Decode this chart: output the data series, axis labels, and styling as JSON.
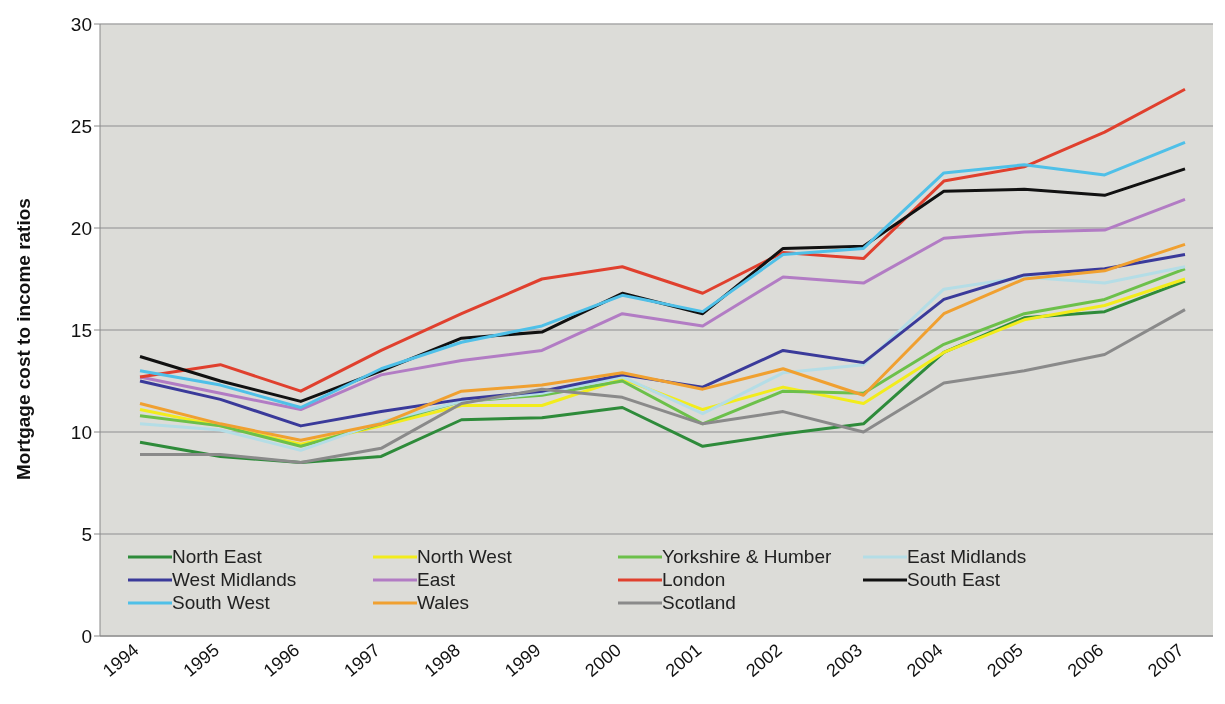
{
  "chart_data": {
    "type": "line",
    "ylabel": "Mortgage cost to income ratios",
    "categories": [
      "1994",
      "1995",
      "1996",
      "1997",
      "1998",
      "1999",
      "2000",
      "2001",
      "2002",
      "2003",
      "2004",
      "2005",
      "2006",
      "2007"
    ],
    "ylim": [
      0,
      30
    ],
    "yticks": [
      0,
      5,
      10,
      15,
      20,
      25,
      30
    ],
    "grid": "y",
    "legend": "bottom left",
    "marker": "none",
    "series": [
      {
        "name": "North East",
        "color": "#2e8b3a",
        "values": [
          9.5,
          8.8,
          8.5,
          8.8,
          10.6,
          10.7,
          11.2,
          9.3,
          9.9,
          10.4,
          13.9,
          15.6,
          15.9,
          17.4
        ]
      },
      {
        "name": "North West",
        "color": "#f2ec1c",
        "values": [
          11.1,
          10.3,
          9.4,
          10.3,
          11.3,
          11.3,
          12.6,
          11.1,
          12.2,
          11.4,
          13.9,
          15.5,
          16.2,
          17.5
        ]
      },
      {
        "name": "Yorkshire & Humber",
        "color": "#6cc04a",
        "values": [
          10.8,
          10.3,
          9.3,
          10.4,
          11.5,
          11.8,
          12.5,
          10.4,
          12.0,
          11.9,
          14.3,
          15.8,
          16.5,
          18.0
        ]
      },
      {
        "name": "East Midlands",
        "color": "#b4dde6",
        "values": [
          10.4,
          10.1,
          9.1,
          10.5,
          11.5,
          11.9,
          12.7,
          10.9,
          12.9,
          13.3,
          17.0,
          17.6,
          17.3,
          18.1
        ]
      },
      {
        "name": "West Midlands",
        "color": "#3a3a9a",
        "values": [
          12.5,
          11.6,
          10.3,
          11.0,
          11.6,
          12.0,
          12.8,
          12.2,
          14.0,
          13.4,
          16.5,
          17.7,
          18.0,
          18.7
        ]
      },
      {
        "name": "East",
        "color": "#b27cc4",
        "values": [
          12.7,
          11.9,
          11.1,
          12.8,
          13.5,
          14.0,
          15.8,
          15.2,
          17.6,
          17.3,
          19.5,
          19.8,
          19.9,
          21.4
        ]
      },
      {
        "name": "London",
        "color": "#e0402e",
        "values": [
          12.7,
          13.3,
          12.0,
          14.0,
          15.8,
          17.5,
          18.1,
          16.8,
          18.8,
          18.5,
          22.3,
          23.0,
          24.7,
          26.8
        ]
      },
      {
        "name": "South East",
        "color": "#111111",
        "values": [
          13.7,
          12.5,
          11.5,
          13.0,
          14.6,
          14.9,
          16.8,
          15.8,
          19.0,
          19.1,
          21.8,
          21.9,
          21.6,
          22.9
        ]
      },
      {
        "name": "South West",
        "color": "#4fc0e8",
        "values": [
          13.0,
          12.3,
          11.2,
          13.1,
          14.4,
          15.2,
          16.7,
          15.9,
          18.7,
          19.0,
          22.7,
          23.1,
          22.6,
          24.2
        ]
      },
      {
        "name": "Wales",
        "color": "#f0a030",
        "values": [
          11.4,
          10.4,
          9.6,
          10.4,
          12.0,
          12.3,
          12.9,
          12.1,
          13.1,
          11.8,
          15.8,
          17.5,
          17.9,
          19.2
        ]
      },
      {
        "name": "Scotland",
        "color": "#8a8a8a",
        "values": [
          8.9,
          8.9,
          8.5,
          9.2,
          11.4,
          12.1,
          11.7,
          10.4,
          11.0,
          10.0,
          12.4,
          13.0,
          13.8,
          16.0
        ]
      }
    ]
  }
}
